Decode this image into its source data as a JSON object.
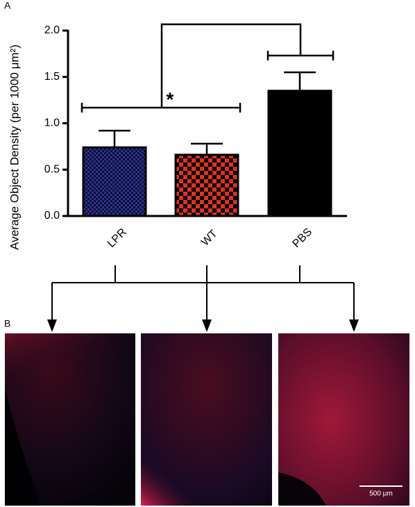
{
  "chart_data": {
    "type": "bar",
    "panel_labels": [
      "A",
      "B"
    ],
    "y_label": "Average Object Density (per 1000 μm²)",
    "categories": [
      "LPR",
      "WT",
      "PBS"
    ],
    "values": [
      0.74,
      0.66,
      1.35
    ],
    "errors": [
      0.18,
      0.12,
      0.2
    ],
    "colors": [
      "#2a2fb0",
      "#e0321e",
      "#000000"
    ],
    "patterns": [
      "fine-check",
      "check",
      "solid"
    ],
    "ylim": [
      0,
      2.0
    ],
    "yticks": [
      {
        "value": 0,
        "label": "0.0"
      },
      0.5,
      {
        "value": 1,
        "label": "1.0"
      },
      1.5,
      {
        "value": 2,
        "label": "2.0"
      }
    ],
    "annotation": "*",
    "scale_bar": "500 µm"
  }
}
